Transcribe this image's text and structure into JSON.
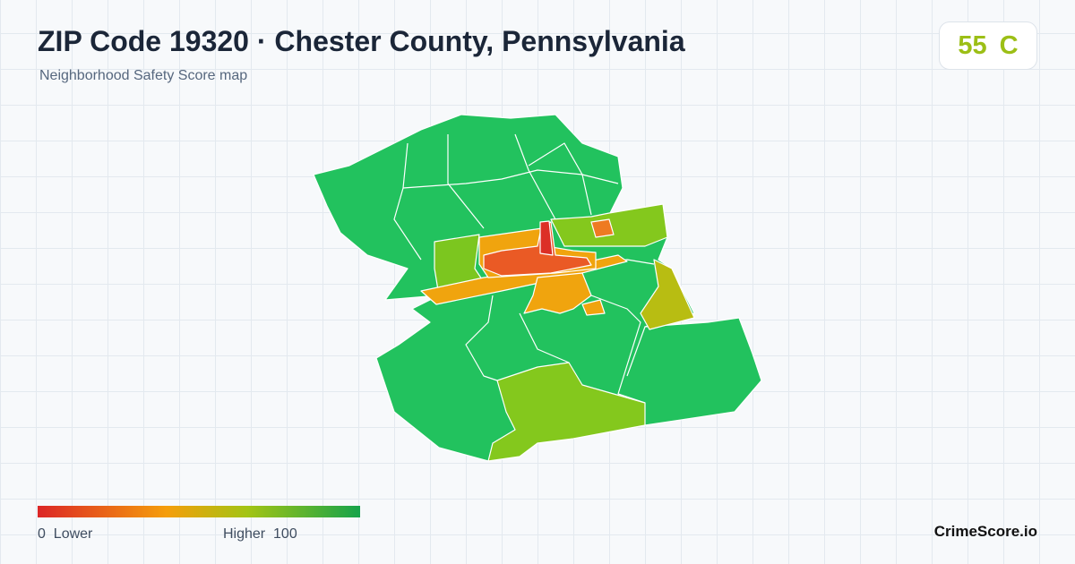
{
  "header": {
    "title": "ZIP Code 19320 · Chester County, Pennsylvania",
    "subtitle": "Neighborhood Safety Score map"
  },
  "score": {
    "value": 55,
    "grade": "C"
  },
  "legend": {
    "min": 0,
    "min_label": "Lower",
    "max_label": "Higher",
    "max": 100
  },
  "brand": "CrimeScore.io"
}
